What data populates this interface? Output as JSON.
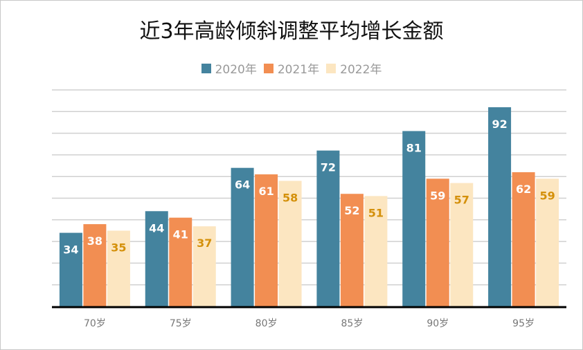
{
  "chart_data": {
    "type": "bar",
    "title": "近3年高龄倾斜调整平均增长金额",
    "categories": [
      "70岁",
      "75岁",
      "80岁",
      "85岁",
      "90岁",
      "95岁"
    ],
    "series": [
      {
        "name": "2020年",
        "values": [
          34,
          44,
          64,
          72,
          81,
          92
        ],
        "color": "#44839E",
        "label_color": "#FFFFFF"
      },
      {
        "name": "2021年",
        "values": [
          38,
          41,
          61,
          52,
          59,
          62
        ],
        "color": "#F28E52",
        "label_color": "#FFFFFF"
      },
      {
        "name": "2022年",
        "values": [
          35,
          37,
          58,
          51,
          57,
          59
        ],
        "color": "#FCE6C1",
        "label_color": "#D4900A"
      }
    ],
    "ylim": [
      0,
      100
    ],
    "grid": true,
    "y_tick_labels_shown": false,
    "legend_position": "top"
  }
}
